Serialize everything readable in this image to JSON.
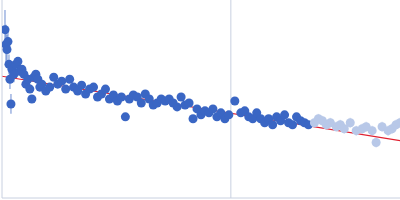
{
  "chart_data": {
    "type": "scatter",
    "xlim": [
      0,
      400
    ],
    "ylim": [
      0,
      200
    ],
    "tick_labels": false,
    "grid": false,
    "x_markers": [
      230
    ],
    "series": [
      {
        "type": "scatter",
        "marker": "circle",
        "color": "#3a66c4",
        "x": [
          3,
          4,
          5,
          6,
          7,
          8,
          9,
          10,
          12,
          14,
          16,
          18,
          20,
          22,
          24,
          26,
          28,
          30,
          32,
          34,
          36,
          38,
          40,
          44,
          48,
          52,
          56,
          60,
          64,
          68,
          72,
          76,
          80,
          84,
          88,
          92,
          96,
          100,
          104,
          108,
          112,
          116,
          120,
          124,
          128,
          132,
          136,
          140,
          144,
          148,
          152,
          156,
          160,
          164,
          168,
          172,
          176,
          180,
          184,
          188,
          192,
          196,
          200,
          204,
          208,
          212,
          216,
          220,
          224,
          228,
          234,
          240,
          244,
          248,
          252,
          256,
          260,
          264,
          268,
          272,
          276,
          280,
          284,
          288,
          292,
          296,
          300,
          304,
          308
        ],
        "values": [
          170,
          155,
          150,
          158,
          135,
          120,
          95,
          130,
          125,
          135,
          138,
          128,
          130,
          125,
          115,
          120,
          110,
          100,
          122,
          125,
          120,
          112,
          115,
          108,
          112,
          122,
          115,
          118,
          110,
          120,
          112,
          108,
          114,
          105,
          110,
          112,
          102,
          105,
          110,
          100,
          104,
          98,
          102,
          82,
          100,
          104,
          102,
          96,
          105,
          100,
          94,
          96,
          100,
          98,
          100,
          96,
          92,
          102,
          94,
          96,
          80,
          90,
          84,
          88,
          86,
          90,
          82,
          86,
          80,
          84,
          98,
          86,
          88,
          82,
          80,
          86,
          80,
          76,
          80,
          74,
          82,
          78,
          84,
          76,
          74,
          82,
          78,
          76,
          74
        ],
        "errors": [
          20,
          20,
          15,
          12,
          10,
          10,
          10,
          8,
          8,
          6,
          3,
          3,
          3,
          3,
          3,
          3,
          3,
          3,
          3,
          3,
          3,
          3,
          3,
          3,
          3,
          3,
          3,
          3,
          3,
          3,
          3,
          3,
          3,
          3,
          3,
          3,
          3,
          3,
          3,
          3,
          3,
          3,
          3,
          3,
          3,
          3,
          3,
          3,
          3,
          3,
          3,
          3,
          3,
          3,
          3,
          3,
          3,
          3,
          3,
          3,
          3,
          3,
          3,
          3,
          3,
          3,
          3,
          3,
          3,
          3,
          3,
          3,
          3,
          3,
          3,
          3,
          3,
          3,
          3,
          3,
          3,
          3,
          3,
          3,
          3,
          3,
          3,
          3,
          3
        ]
      },
      {
        "type": "scatter",
        "marker": "circle",
        "color": "#b8c8e8",
        "x": [
          314,
          318,
          322,
          326,
          330,
          336,
          340,
          344,
          350,
          356,
          362,
          366,
          372,
          376,
          382,
          388,
          392,
          396,
          400
        ],
        "values": [
          76,
          80,
          78,
          74,
          76,
          72,
          74,
          70,
          76,
          68,
          70,
          72,
          68,
          56,
          72,
          68,
          70,
          74,
          76
        ],
        "errors": [
          5,
          5,
          5,
          5,
          5,
          5,
          5,
          5,
          5,
          5,
          5,
          5,
          5,
          5,
          5,
          5,
          5,
          5,
          5
        ]
      },
      {
        "type": "line",
        "line_style": "solid",
        "color": "#e02030",
        "x": [
          0,
          400
        ],
        "values": [
          123,
          58
        ]
      }
    ]
  }
}
